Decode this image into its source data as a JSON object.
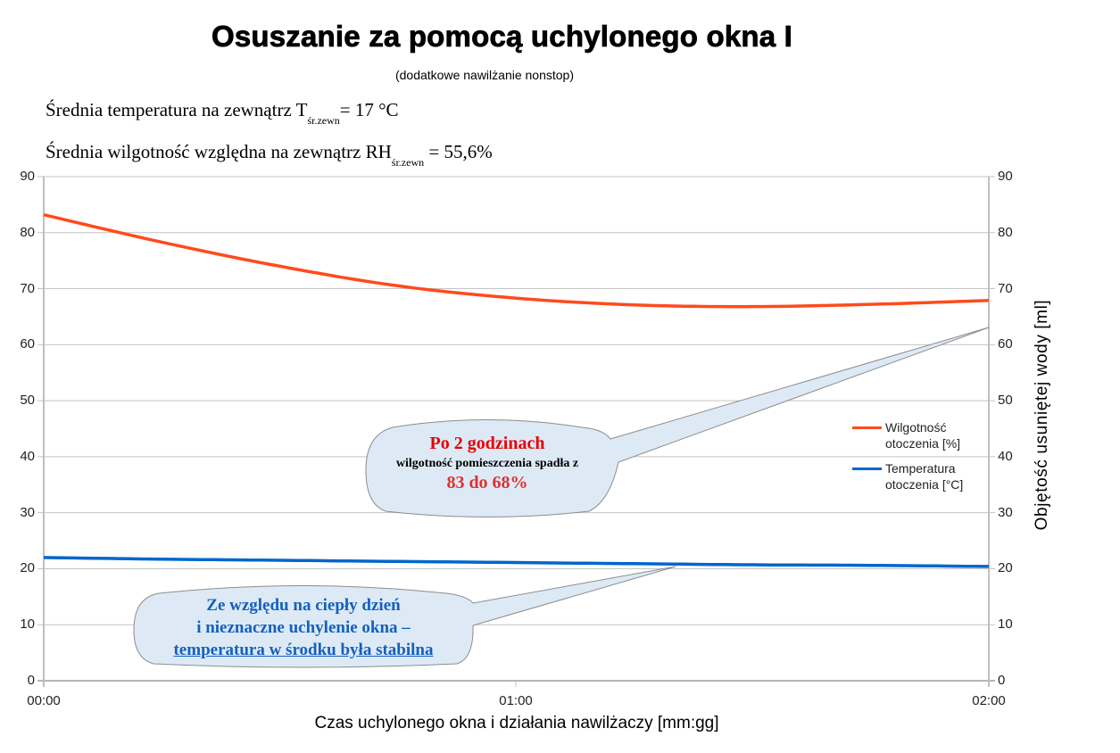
{
  "header": {
    "title": "Osuszanie za pomocą uchylonego okna I",
    "subtitle": "(dodatkowe nawilżanie nonstop)"
  },
  "info": {
    "temp_label": "Średnia temperatura na zewnątrz T",
    "temp_sub": "śr.zewn",
    "temp_value": "= 17 °C",
    "rh_label": "Średnia wilgotność względna na zewnątrz RH",
    "rh_sub": "śr.zewn",
    "rh_value": " =  55,6%"
  },
  "axes": {
    "left_ticks": [
      "90",
      "80",
      "70",
      "60",
      "50",
      "40",
      "30",
      "20",
      "10",
      "0"
    ],
    "right_ticks": [
      "90",
      "80",
      "70",
      "60",
      "50",
      "40",
      "30",
      "20",
      "10",
      "0"
    ],
    "x_ticks": [
      "00:00",
      "01:00",
      "02:00"
    ],
    "xlabel": "Czas uchylonego okna i działania nawilżaczy [mm:gg]",
    "ylabel_right": "Objętość usuniętej wody [ml]"
  },
  "legend": {
    "items": [
      {
        "label": "Wilgotność otoczenia [%]",
        "color": "#ff4a1c"
      },
      {
        "label": "Temperatura otoczenia [°C]",
        "color": "#0066cc"
      }
    ]
  },
  "callouts": {
    "humidity": {
      "line1": "Po 2 godzinach",
      "line2": "wilgotność pomieszczenia spadła z",
      "line3": "83 do 68%"
    },
    "temperature": {
      "line1": "Ze względu na ciepły dzień",
      "line2": "i nieznaczne uchylenie okna –",
      "line3": "temperatura w środku była stabilna"
    }
  },
  "colors": {
    "humidity": "#ff4a1c",
    "temperature": "#0066cc",
    "grid": "#c0c0c0",
    "callout_fill": "#ddeaf6",
    "callout_stroke": "#8c8c8c"
  },
  "chart_data": {
    "type": "line",
    "title": "Osuszanie za pomocą uchylonego okna I",
    "subtitle": "(dodatkowe nawilżanie nonstop)",
    "xlabel": "Czas uchylonego okna i działania nawilżaczy [mm:gg]",
    "ylabel": "",
    "ylabel_right": "Objętość usuniętej wody [ml]",
    "ylim": [
      0,
      90
    ],
    "ylim_right": [
      0,
      90
    ],
    "yticks": [
      0,
      10,
      20,
      30,
      40,
      50,
      60,
      70,
      80,
      90
    ],
    "x_ticks": [
      "00:00",
      "01:00",
      "02:00"
    ],
    "grid": true,
    "legend_position": "right",
    "x": [
      "00:00",
      "00:15",
      "00:30",
      "00:45",
      "01:00",
      "01:15",
      "01:30",
      "01:45",
      "02:00"
    ],
    "series": [
      {
        "name": "Wilgotność otoczenia [%]",
        "color": "#ff4a1c",
        "values": [
          83.2,
          78.3,
          74.0,
          70.5,
          68.3,
          67.1,
          66.8,
          67.2,
          67.9
        ]
      },
      {
        "name": "Temperatura otoczenia [°C]",
        "color": "#0066cc",
        "values": [
          22.0,
          21.7,
          21.5,
          21.3,
          21.1,
          20.9,
          20.7,
          20.6,
          20.4
        ]
      }
    ],
    "annotations": [
      "Po 2 godzinach wilgotność pomieszczenia spadła z 83 do 68%",
      "Ze względu na ciepły dzień i nieznaczne uchylenie okna – temperatura w środku była stabilna"
    ]
  }
}
